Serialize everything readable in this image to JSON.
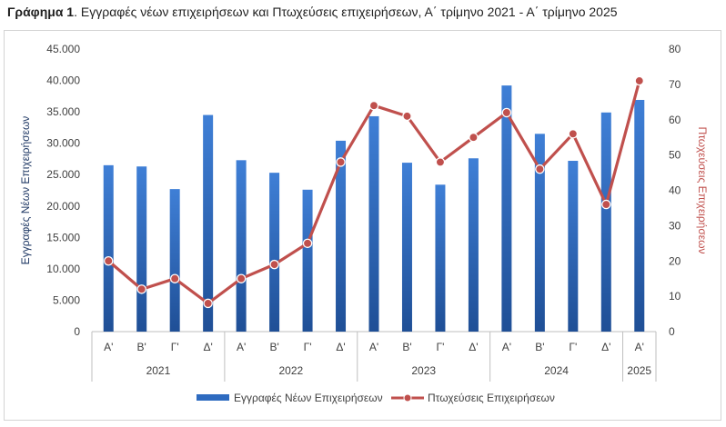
{
  "figure": {
    "title_prefix": "Γράφημα 1",
    "title_text": ". Εγγραφές νέων επιχειρήσεων και Πτωχεύσεις επιχειρήσεων, Α΄ τρίμηνο 2021 - Α΄ τρίμηνο 2025"
  },
  "chart_data": {
    "type": "bar",
    "combo": "bar+line",
    "categories": [
      "Α'",
      "Β'",
      "Γ'",
      "Δ'",
      "Α'",
      "Β'",
      "Γ'",
      "Δ'",
      "Α'",
      "Β'",
      "Γ'",
      "Δ'",
      "Α'",
      "Β'",
      "Γ'",
      "Δ'",
      "Α'"
    ],
    "groups": [
      {
        "label": "2021",
        "count": 4
      },
      {
        "label": "2022",
        "count": 4
      },
      {
        "label": "2023",
        "count": 4
      },
      {
        "label": "2024",
        "count": 4
      },
      {
        "label": "2025",
        "count": 1
      }
    ],
    "series": [
      {
        "name": "Εγγραφές Νέων Επιχειρήσεων",
        "type": "bar",
        "axis": "left",
        "color": "#2e6bc0",
        "values": [
          26500,
          26300,
          22700,
          34500,
          27300,
          25300,
          22600,
          30400,
          34300,
          26900,
          23400,
          27600,
          39200,
          31500,
          27200,
          34900,
          36900
        ]
      },
      {
        "name": "Πτωχεύσεις Επιχειρήσεων",
        "type": "line",
        "axis": "right",
        "color": "#c0504d",
        "values": [
          20,
          12,
          15,
          8,
          15,
          19,
          25,
          48,
          64,
          61,
          48,
          55,
          62,
          46,
          56,
          36,
          71
        ]
      }
    ],
    "y_left": {
      "label": "Εγγραφές Νέων Επιχειρήσεων",
      "min": 0,
      "max": 45000,
      "step": 5000,
      "ticks": [
        "0",
        "5.000",
        "10.000",
        "15.000",
        "20.000",
        "25.000",
        "30.000",
        "35.000",
        "40.000",
        "45.000"
      ]
    },
    "y_right": {
      "label": "Πτωχεύσεις Επιχειρήσεων",
      "label_color": "#c0504d",
      "min": 0,
      "max": 80,
      "step": 10,
      "ticks": [
        "0",
        "10",
        "20",
        "30",
        "40",
        "50",
        "60",
        "70",
        "80"
      ]
    },
    "grid": false,
    "legend": "bottom"
  }
}
